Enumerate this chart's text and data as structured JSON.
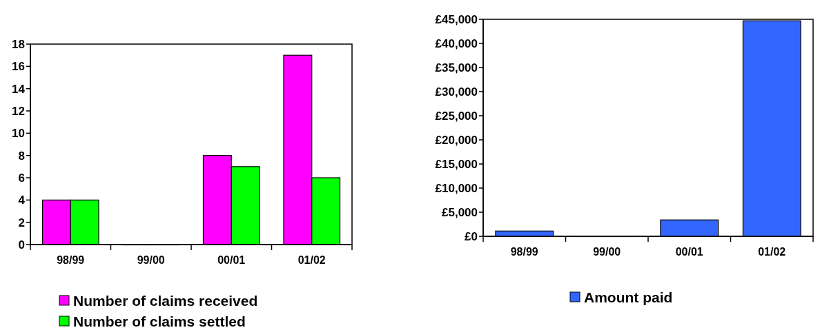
{
  "chart_data": [
    {
      "type": "bar",
      "categories": [
        "98/99",
        "99/00",
        "00/01",
        "01/02"
      ],
      "series": [
        {
          "name": "Number of claims received",
          "color": "#ff00ff",
          "values": [
            4,
            0,
            8,
            17
          ]
        },
        {
          "name": "Number of claims settled",
          "color": "#00ff00",
          "values": [
            4,
            0,
            7,
            6
          ]
        }
      ],
      "ylim": [
        0,
        18
      ],
      "yticks": [
        0,
        2,
        4,
        6,
        8,
        10,
        12,
        14,
        16,
        18
      ],
      "legend": "bottom"
    },
    {
      "type": "bar",
      "categories": [
        "98/99",
        "99/00",
        "00/01",
        "01/02"
      ],
      "series": [
        {
          "name": "Amount paid",
          "color": "#3366ff",
          "values": [
            1100,
            0,
            3400,
            44700
          ]
        }
      ],
      "ylim": [
        0,
        45000
      ],
      "yticks": [
        {
          "value": 0,
          "label": "£0"
        },
        {
          "value": 5000,
          "label": "£5,000"
        },
        {
          "value": 10000,
          "label": "£10,000"
        },
        {
          "value": 15000,
          "label": "£15,000"
        },
        {
          "value": 20000,
          "label": "£20,000"
        },
        {
          "value": 25000,
          "label": "£25,000"
        },
        {
          "value": 30000,
          "label": "£30,000"
        },
        {
          "value": 35000,
          "label": "£35,000"
        },
        {
          "value": 40000,
          "label": "£40,000"
        },
        {
          "value": 45000,
          "label": "£45,000"
        }
      ],
      "legend": "bottom"
    }
  ]
}
